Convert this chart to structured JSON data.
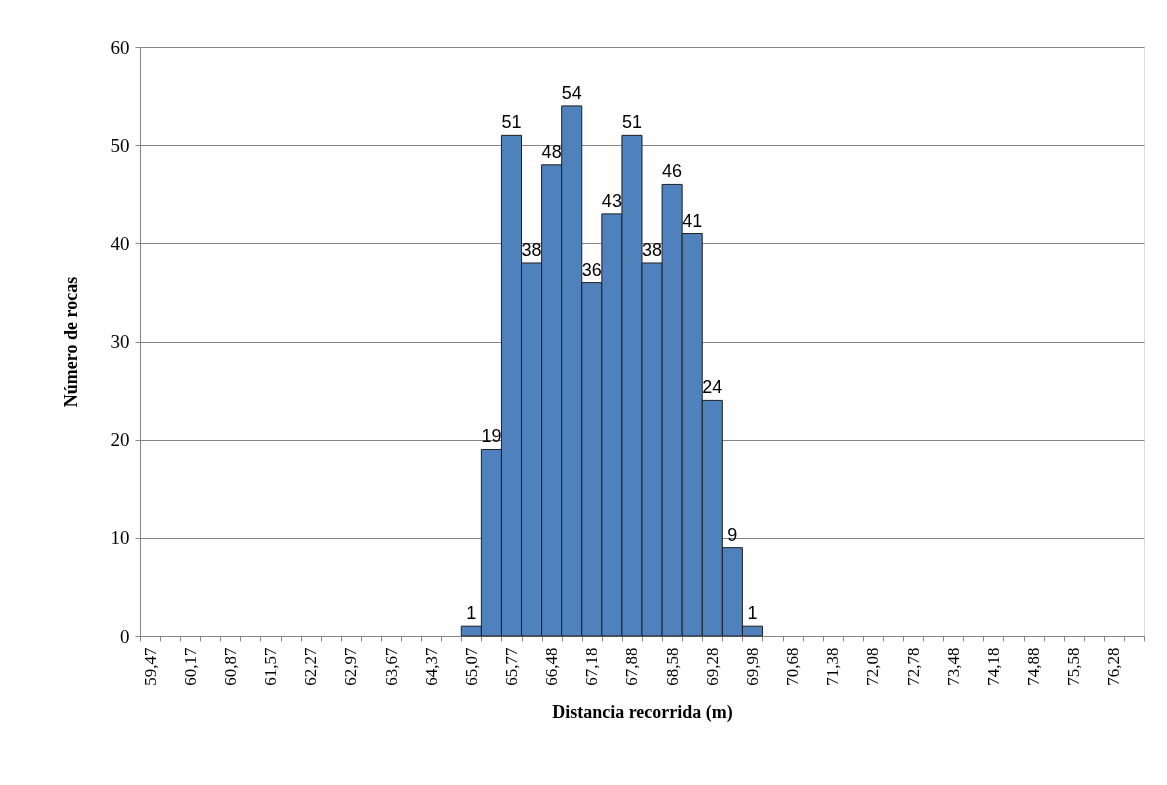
{
  "chart_data": {
    "type": "bar",
    "xlabel": "Distancia recorrida (m)",
    "ylabel": "Número de rocas",
    "categories": [
      "59,47",
      null,
      "60,17",
      null,
      "60,87",
      null,
      "61,57",
      null,
      "62,27",
      null,
      "62,97",
      null,
      "63,67",
      null,
      "64,37",
      null,
      "65,07",
      null,
      "65,77",
      null,
      "66,48",
      null,
      "67,18",
      null,
      "67,88",
      null,
      "68,58",
      null,
      "69,28",
      null,
      "69,98",
      null,
      "70,68",
      null,
      "71,38",
      null,
      "72,08",
      null,
      "72,78",
      null,
      "73,48",
      null,
      "74,18",
      null,
      "74,88",
      null,
      "75,58",
      null,
      "76,28",
      null
    ],
    "values": [
      0,
      0,
      0,
      0,
      0,
      0,
      0,
      0,
      0,
      0,
      0,
      0,
      0,
      0,
      0,
      0,
      1,
      19,
      51,
      38,
      48,
      54,
      36,
      43,
      51,
      38,
      46,
      41,
      24,
      9,
      1,
      0,
      0,
      0,
      0,
      0,
      0,
      0,
      0,
      0,
      0,
      0,
      0,
      0,
      0,
      0,
      0,
      0,
      0,
      0
    ],
    "value_labels": [
      null,
      null,
      null,
      null,
      null,
      null,
      null,
      null,
      null,
      null,
      null,
      null,
      null,
      null,
      null,
      null,
      "1",
      "19",
      "51",
      "38",
      "48",
      "54",
      "36",
      "43",
      "51",
      "38",
      "46",
      "41",
      "24",
      "9",
      "1",
      null,
      null,
      null,
      null,
      null,
      null,
      null,
      null,
      null,
      null,
      null,
      null,
      null,
      null,
      null,
      null,
      null,
      null,
      null
    ],
    "color": "#4f81bd",
    "ylim": [
      0,
      60
    ],
    "yticks": [
      0,
      10,
      20,
      30,
      40,
      50,
      60
    ],
    "grid": "y"
  }
}
